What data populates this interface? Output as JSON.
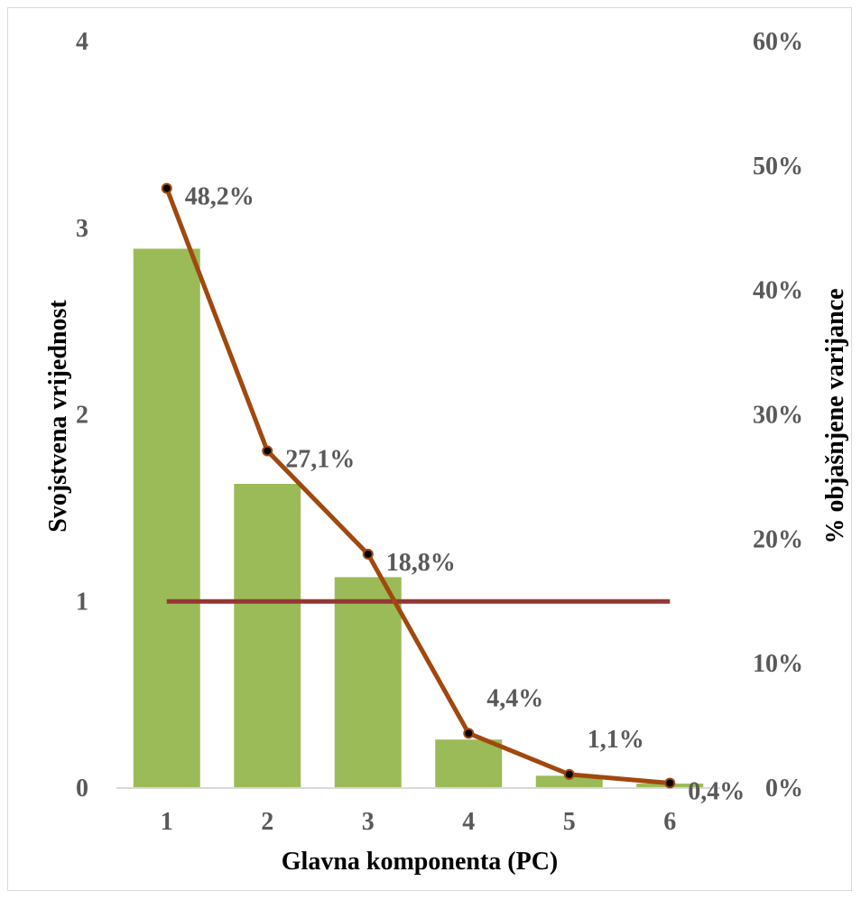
{
  "chart_data": {
    "type": "bar",
    "categories": [
      "1",
      "2",
      "3",
      "4",
      "5",
      "6"
    ],
    "series": [
      {
        "type": "bar",
        "axis": "left",
        "color": "#9BBB59",
        "values": [
          2.89,
          1.63,
          1.13,
          0.26,
          0.066,
          0.024
        ]
      },
      {
        "type": "line",
        "axis": "right",
        "color": "#A0480F",
        "values": [
          48.2,
          27.1,
          18.8,
          4.4,
          1.1,
          0.4
        ],
        "labels": [
          "48,2%",
          "27,1%",
          "18,8%",
          "4,4%",
          "1,1%",
          "0,4%"
        ]
      },
      {
        "type": "line",
        "axis": "left",
        "color": "#943634",
        "values": [
          1,
          1,
          1,
          1,
          1,
          1
        ]
      }
    ],
    "xlabel": "Glavna komponenta (PC)",
    "ylabel": "Svojstvena vrijednost",
    "y2label": "% objašnjene varijance",
    "ylim": [
      0,
      4
    ],
    "y2lim": [
      0,
      60
    ],
    "yticks": [
      "0",
      "1",
      "2",
      "3",
      "4"
    ],
    "y2ticks": [
      "0%",
      "10%",
      "20%",
      "30%",
      "40%",
      "50%",
      "60%"
    ],
    "grid": false,
    "legend": "none"
  }
}
